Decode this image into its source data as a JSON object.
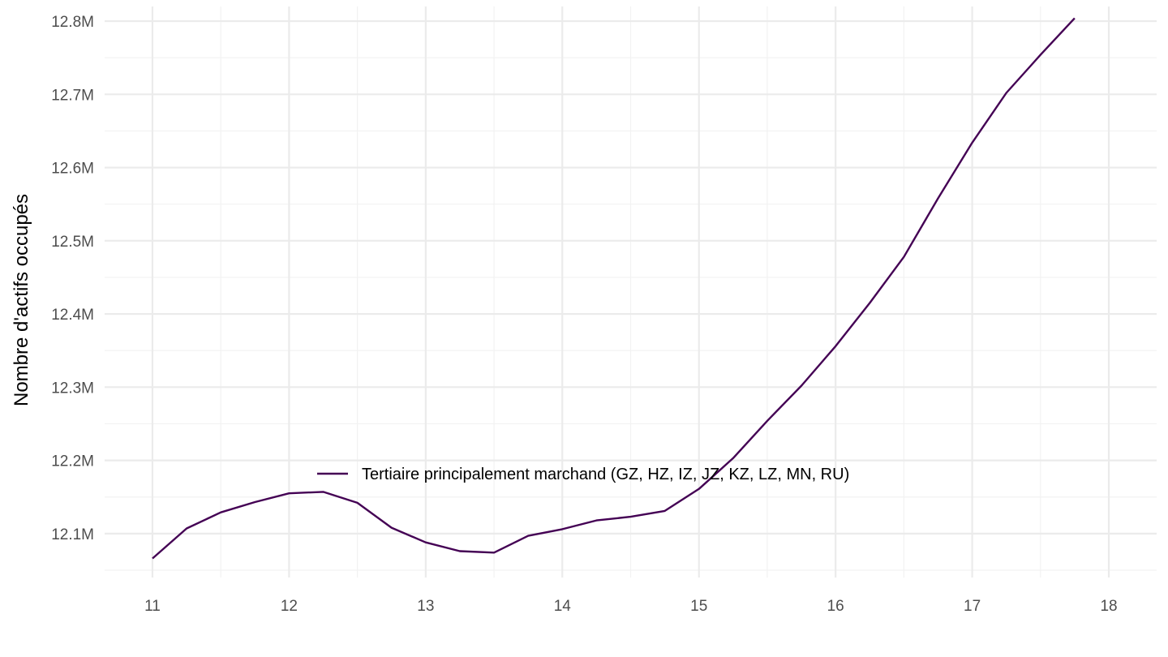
{
  "chart_data": {
    "type": "line",
    "title": "",
    "xlabel": "",
    "ylabel": "Nombre d'actifs occupés",
    "xlim": [
      10.65,
      18.35
    ],
    "ylim": [
      12.04,
      12.82
    ],
    "x_ticks": [
      11,
      12,
      13,
      14,
      15,
      16,
      17,
      18
    ],
    "x_tick_labels": [
      "11",
      "12",
      "13",
      "14",
      "15",
      "16",
      "17",
      "18"
    ],
    "y_ticks": [
      12.1,
      12.2,
      12.3,
      12.4,
      12.5,
      12.6,
      12.7,
      12.8
    ],
    "y_tick_labels": [
      "12.1M",
      "12.2M",
      "12.3M",
      "12.4M",
      "12.5M",
      "12.6M",
      "12.7M",
      "12.8M"
    ],
    "grid": true,
    "legend_position": "inside-center",
    "series": [
      {
        "name": "Tertiaire principalement marchand (GZ, HZ, IZ, JZ, KZ, LZ, MN, RU)",
        "color": "#440154",
        "x": [
          11,
          11.25,
          11.5,
          11.75,
          12,
          12.25,
          12.5,
          12.75,
          13,
          13.25,
          13.5,
          13.75,
          14,
          14.25,
          14.5,
          14.75,
          15,
          15.25,
          15.5,
          15.75,
          16,
          16.25,
          16.5,
          16.75,
          17,
          17.25,
          17.5,
          17.75
        ],
        "values": [
          12.066,
          12.107,
          12.129,
          12.143,
          12.155,
          12.157,
          12.142,
          12.108,
          12.088,
          12.076,
          12.074,
          12.097,
          12.106,
          12.118,
          12.123,
          12.131,
          12.161,
          12.203,
          12.254,
          12.302,
          12.356,
          12.415,
          12.478,
          12.558,
          12.634,
          12.702,
          12.754,
          12.804
        ]
      }
    ]
  }
}
